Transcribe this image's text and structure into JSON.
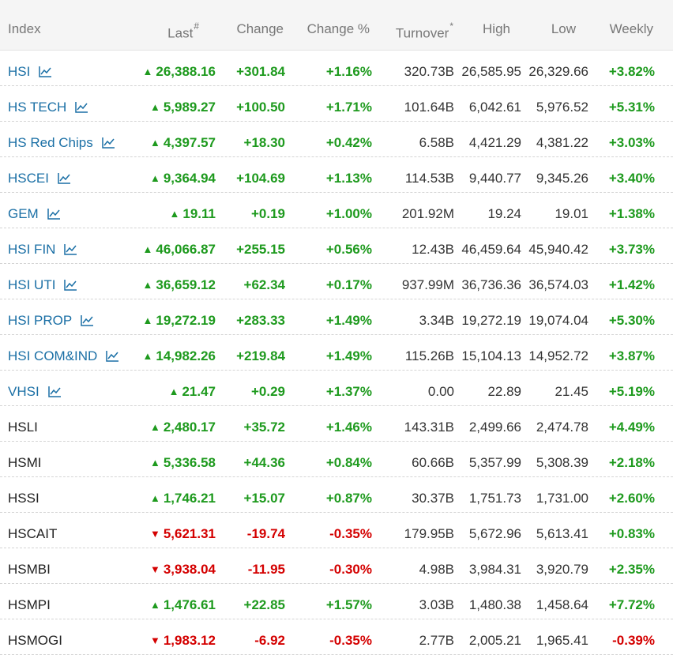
{
  "columns": {
    "index": "Index",
    "last": "Last",
    "last_mark": "#",
    "change": "Change",
    "change_pct": "Change %",
    "turnover": "Turnover",
    "turnover_mark": "*",
    "high": "High",
    "low": "Low",
    "weekly": "Weekly"
  },
  "colors": {
    "up": "#1e9a1e",
    "down": "#d40000",
    "link": "#1a6fa5"
  },
  "rows": [
    {
      "name": "HSI",
      "link": true,
      "dir": "up",
      "last": "26,388.16",
      "change": "+301.84",
      "pct": "+1.16%",
      "turnover": "320.73B",
      "high": "26,585.95",
      "low": "26,329.66",
      "weekly": "+3.82%"
    },
    {
      "name": "HS TECH",
      "link": true,
      "dir": "up",
      "last": "5,989.27",
      "change": "+100.50",
      "pct": "+1.71%",
      "turnover": "101.64B",
      "high": "6,042.61",
      "low": "5,976.52",
      "weekly": "+5.31%"
    },
    {
      "name": "HS Red Chips",
      "link": true,
      "dir": "up",
      "last": "4,397.57",
      "change": "+18.30",
      "pct": "+0.42%",
      "turnover": "6.58B",
      "high": "4,421.29",
      "low": "4,381.22",
      "weekly": "+3.03%"
    },
    {
      "name": "HSCEI",
      "link": true,
      "dir": "up",
      "last": "9,364.94",
      "change": "+104.69",
      "pct": "+1.13%",
      "turnover": "114.53B",
      "high": "9,440.77",
      "low": "9,345.26",
      "weekly": "+3.40%"
    },
    {
      "name": "GEM",
      "link": true,
      "dir": "up",
      "last": "19.11",
      "change": "+0.19",
      "pct": "+1.00%",
      "turnover": "201.92M",
      "high": "19.24",
      "low": "19.01",
      "weekly": "+1.38%"
    },
    {
      "name": "HSI FIN",
      "link": true,
      "dir": "up",
      "last": "46,066.87",
      "change": "+255.15",
      "pct": "+0.56%",
      "turnover": "12.43B",
      "high": "46,459.64",
      "low": "45,940.42",
      "weekly": "+3.73%"
    },
    {
      "name": "HSI UTI",
      "link": true,
      "dir": "up",
      "last": "36,659.12",
      "change": "+62.34",
      "pct": "+0.17%",
      "turnover": "937.99M",
      "high": "36,736.36",
      "low": "36,574.03",
      "weekly": "+1.42%"
    },
    {
      "name": "HSI PROP",
      "link": true,
      "dir": "up",
      "last": "19,272.19",
      "change": "+283.33",
      "pct": "+1.49%",
      "turnover": "3.34B",
      "high": "19,272.19",
      "low": "19,074.04",
      "weekly": "+5.30%"
    },
    {
      "name": "HSI COM&IND",
      "link": true,
      "dir": "up",
      "last": "14,982.26",
      "change": "+219.84",
      "pct": "+1.49%",
      "turnover": "115.26B",
      "high": "15,104.13",
      "low": "14,952.72",
      "weekly": "+3.87%"
    },
    {
      "name": "VHSI",
      "link": true,
      "dir": "up",
      "last": "21.47",
      "change": "+0.29",
      "pct": "+1.37%",
      "turnover": "0.00",
      "high": "22.89",
      "low": "21.45",
      "weekly": "+5.19%"
    },
    {
      "name": "HSLI",
      "link": false,
      "dir": "up",
      "last": "2,480.17",
      "change": "+35.72",
      "pct": "+1.46%",
      "turnover": "143.31B",
      "high": "2,499.66",
      "low": "2,474.78",
      "weekly": "+4.49%"
    },
    {
      "name": "HSMI",
      "link": false,
      "dir": "up",
      "last": "5,336.58",
      "change": "+44.36",
      "pct": "+0.84%",
      "turnover": "60.66B",
      "high": "5,357.99",
      "low": "5,308.39",
      "weekly": "+2.18%"
    },
    {
      "name": "HSSI",
      "link": false,
      "dir": "up",
      "last": "1,746.21",
      "change": "+15.07",
      "pct": "+0.87%",
      "turnover": "30.37B",
      "high": "1,751.73",
      "low": "1,731.00",
      "weekly": "+2.60%"
    },
    {
      "name": "HSCAIT",
      "link": false,
      "dir": "down",
      "last": "5,621.31",
      "change": "-19.74",
      "pct": "-0.35%",
      "turnover": "179.95B",
      "high": "5,672.96",
      "low": "5,613.41",
      "weekly": "+0.83%"
    },
    {
      "name": "HSMBI",
      "link": false,
      "dir": "down",
      "last": "3,938.04",
      "change": "-11.95",
      "pct": "-0.30%",
      "turnover": "4.98B",
      "high": "3,984.31",
      "low": "3,920.79",
      "weekly": "+2.35%"
    },
    {
      "name": "HSMPI",
      "link": false,
      "dir": "up",
      "last": "1,476.61",
      "change": "+22.85",
      "pct": "+1.57%",
      "turnover": "3.03B",
      "high": "1,480.38",
      "low": "1,458.64",
      "weekly": "+7.72%"
    },
    {
      "name": "HSMOGI",
      "link": false,
      "dir": "down",
      "last": "1,983.12",
      "change": "-6.92",
      "pct": "-0.35%",
      "turnover": "2.77B",
      "high": "2,005.21",
      "low": "1,965.41",
      "weekly": "-0.39%"
    }
  ]
}
